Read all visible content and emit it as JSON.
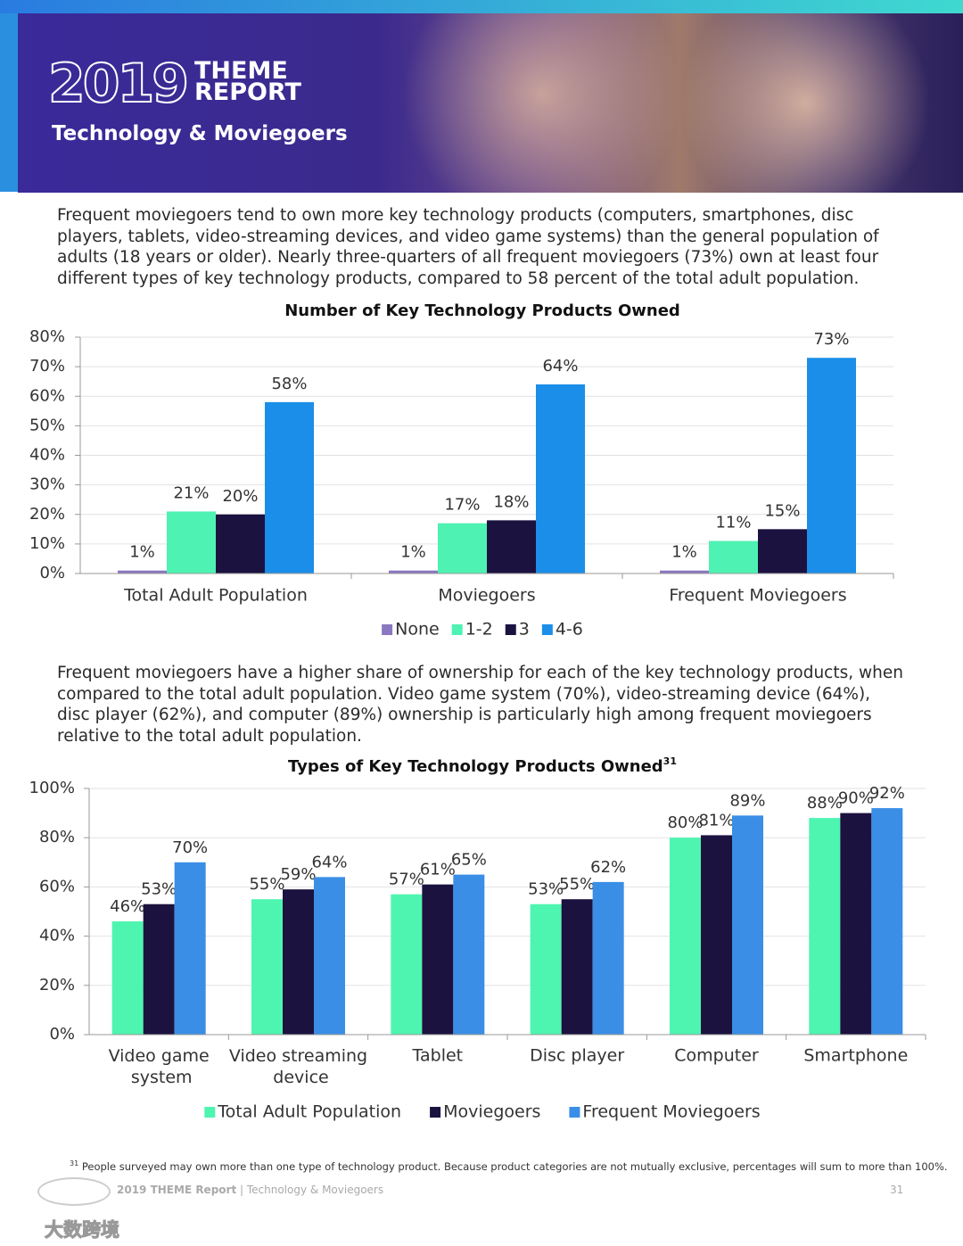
{
  "header": {
    "year": "2019",
    "brand_top": "THEME",
    "brand_bottom": "REPORT",
    "subtitle": "Technology & Moviegoers"
  },
  "paragraphs": [
    "Frequent moviegoers tend to own more key technology products (computers, smartphones, disc players, tablets, video-streaming devices, and video game systems) than the general population of adults (18 years or older). Nearly three-quarters of all frequent moviegoers (73%) own at least four different types of key technology products, compared to 58 percent of the total adult population.",
    "Frequent moviegoers have a higher share of ownership for each of the key technology products, when compared to the total adult population. Video game system (70%), video-streaming device (64%), disc player (62%), and computer (89%) ownership is particularly high among frequent moviegoers relative to the total adult population."
  ],
  "chart_data": [
    {
      "type": "bar",
      "title": "Number of Key Technology Products Owned",
      "categories": [
        "Total Adult Population",
        "Moviegoers",
        "Frequent Moviegoers"
      ],
      "series": [
        {
          "name": "None",
          "color": "#8a78c0",
          "values": [
            1,
            1,
            1
          ],
          "value_labels": [
            "1%",
            "1%",
            "1%"
          ]
        },
        {
          "name": "1-2",
          "color": "#4ef2b2",
          "values": [
            21,
            17,
            11
          ],
          "value_labels": [
            "21%",
            "17%",
            "11%"
          ]
        },
        {
          "name": "3",
          "color": "#1c1240",
          "values": [
            20,
            18,
            15
          ],
          "value_labels": [
            "20%",
            "18%",
            "15%"
          ]
        },
        {
          "name": "4-6",
          "color": "#1a8ee8",
          "values": [
            58,
            64,
            73
          ],
          "value_labels": [
            "58%",
            "64%",
            "73%"
          ]
        }
      ],
      "ylim": [
        0,
        80
      ],
      "yticks": [
        {
          "value": 0,
          "label": "0%"
        },
        {
          "value": 10,
          "label": "10%"
        },
        {
          "value": 20,
          "label": "20%"
        },
        {
          "value": 30,
          "label": "30%"
        },
        {
          "value": 40,
          "label": "40%"
        },
        {
          "value": 50,
          "label": "50%"
        },
        {
          "value": 60,
          "label": "60%"
        },
        {
          "value": 70,
          "label": "70%"
        },
        {
          "value": 80,
          "label": "80%"
        }
      ],
      "grid": true,
      "legend": "bottom"
    },
    {
      "type": "bar",
      "title": "Types of Key Technology Products Owned",
      "title_note": "31",
      "categories": [
        "Video game system",
        "Video streaming device",
        "Tablet",
        "Disc player",
        "Computer",
        "Smartphone"
      ],
      "series": [
        {
          "name": "Total Adult Population",
          "color": "#4df5b0",
          "values": [
            46,
            55,
            57,
            53,
            80,
            88
          ],
          "value_labels": [
            "46%",
            "55%",
            "57%",
            "53%",
            "80%",
            "88%"
          ]
        },
        {
          "name": "Moviegoers",
          "color": "#1c1240",
          "values": [
            53,
            59,
            61,
            55,
            81,
            90
          ],
          "value_labels": [
            "53%",
            "59%",
            "61%",
            "55%",
            "81%",
            "90%"
          ]
        },
        {
          "name": "Frequent Moviegoers",
          "color": "#3a8ee6",
          "values": [
            70,
            64,
            65,
            62,
            89,
            92
          ],
          "value_labels": [
            "70%",
            "64%",
            "65%",
            "62%",
            "89%",
            "92%"
          ]
        }
      ],
      "ylim": [
        0,
        100
      ],
      "yticks": [
        {
          "value": 0,
          "label": "0%"
        },
        {
          "value": 20,
          "label": "20%"
        },
        {
          "value": 40,
          "label": "40%"
        },
        {
          "value": 60,
          "label": "60%"
        },
        {
          "value": 80,
          "label": "80%"
        },
        {
          "value": 100,
          "label": "100%"
        }
      ],
      "grid": true,
      "legend": "bottom"
    }
  ],
  "footnote": {
    "number": "31",
    "text": "People surveyed may own more than one type of technology product. Because product categories are not mutually exclusive, percentages will sum to more than 100%."
  },
  "footer": {
    "brand": "2019 THEME Report",
    "section": "Technology & Moviegoers",
    "page": "31"
  },
  "watermark": "大数跨境"
}
